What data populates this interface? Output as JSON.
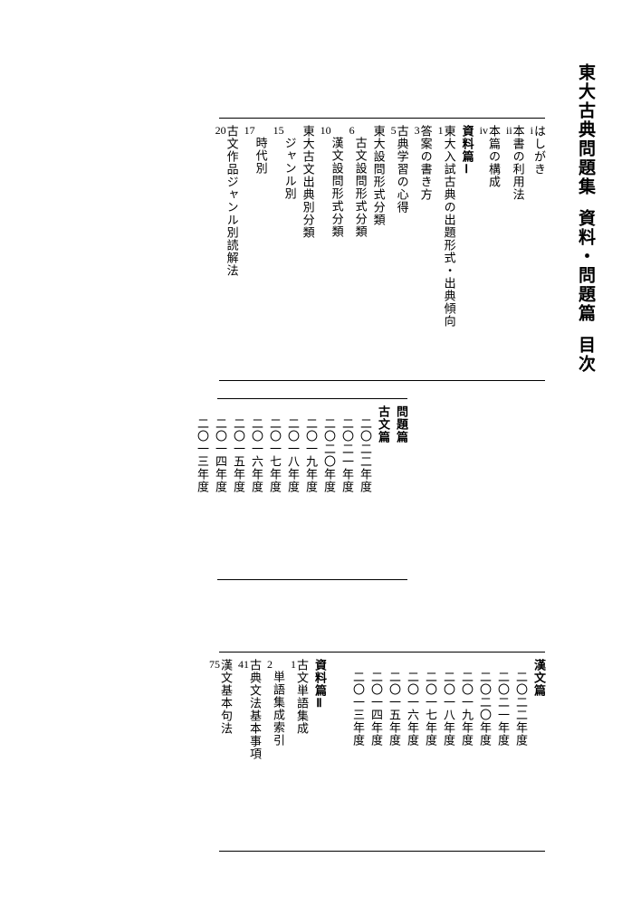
{
  "title_parts": [
    "東大古典問題集",
    "資料・問題篇",
    "目次"
  ],
  "block1": {
    "entries": [
      {
        "label": "はしがき",
        "page": "i",
        "indent": 0,
        "heading": false
      },
      {
        "label": "本書の利用法",
        "page": "ii",
        "indent": 0,
        "heading": false
      },
      {
        "label": "本篇の構成",
        "page": "iv",
        "indent": 0,
        "heading": false
      },
      {
        "label": "資料篇Ⅰ",
        "page": "",
        "indent": 0,
        "heading": true
      },
      {
        "label": "東大入試古典の出題形式・出典傾向",
        "page": "1",
        "indent": 0,
        "heading": false
      },
      {
        "label": "答案の書き方",
        "page": "3",
        "indent": 0,
        "heading": false
      },
      {
        "label": "古典学習の心得",
        "page": "5",
        "indent": 0,
        "heading": false
      },
      {
        "label": "東大設問形式分類",
        "page": "",
        "indent": 0,
        "heading": false
      },
      {
        "label": "古文設問形式分類",
        "page": "6",
        "indent": 1,
        "heading": false
      },
      {
        "label": "漢文設問形式分類",
        "page": "10",
        "indent": 1,
        "heading": false
      },
      {
        "label": "東大古文出典別分類",
        "page": "",
        "indent": 0,
        "heading": false
      },
      {
        "label": "ジャンル別",
        "page": "15",
        "indent": 1,
        "heading": false
      },
      {
        "label": "時代別",
        "page": "17",
        "indent": 1,
        "heading": false
      },
      {
        "label": "古文作品ジャンル別読解法",
        "page": "20",
        "indent": 0,
        "heading": false
      }
    ]
  },
  "block2": {
    "entries": [
      {
        "label": "問題篇",
        "page": "",
        "indent": 0,
        "heading": true
      },
      {
        "label": "古文篇",
        "page": "",
        "indent": 0,
        "heading": true
      },
      {
        "label": "二〇二二年度",
        "page": "",
        "indent": 1,
        "heading": false
      },
      {
        "label": "二〇二一年度",
        "page": "",
        "indent": 1,
        "heading": false
      },
      {
        "label": "二〇二〇年度",
        "page": "",
        "indent": 1,
        "heading": false
      },
      {
        "label": "二〇一九年度",
        "page": "",
        "indent": 1,
        "heading": false
      },
      {
        "label": "二〇一八年度",
        "page": "",
        "indent": 1,
        "heading": false
      },
      {
        "label": "二〇一七年度",
        "page": "",
        "indent": 1,
        "heading": false
      },
      {
        "label": "二〇一六年度",
        "page": "",
        "indent": 1,
        "heading": false
      },
      {
        "label": "二〇一五年度",
        "page": "",
        "indent": 1,
        "heading": false
      },
      {
        "label": "二〇一四年度",
        "page": "",
        "indent": 1,
        "heading": false
      },
      {
        "label": "二〇一三年度",
        "page": "",
        "indent": 1,
        "heading": false
      }
    ]
  },
  "block3": {
    "entries": [
      {
        "label": "漢文篇",
        "page": "",
        "indent": 0,
        "heading": true
      },
      {
        "label": "二〇二二年度",
        "page": "",
        "indent": 1,
        "heading": false
      },
      {
        "label": "二〇二一年度",
        "page": "",
        "indent": 1,
        "heading": false
      },
      {
        "label": "二〇二〇年度",
        "page": "",
        "indent": 1,
        "heading": false
      },
      {
        "label": "二〇一九年度",
        "page": "",
        "indent": 1,
        "heading": false
      },
      {
        "label": "二〇一八年度",
        "page": "",
        "indent": 1,
        "heading": false
      },
      {
        "label": "二〇一七年度",
        "page": "",
        "indent": 1,
        "heading": false
      },
      {
        "label": "二〇一六年度",
        "page": "",
        "indent": 1,
        "heading": false
      },
      {
        "label": "二〇一五年度",
        "page": "",
        "indent": 1,
        "heading": false
      },
      {
        "label": "二〇一四年度",
        "page": "",
        "indent": 1,
        "heading": false
      },
      {
        "label": "二〇一三年度",
        "page": "",
        "indent": 1,
        "heading": false
      }
    ]
  },
  "block3b": {
    "entries": [
      {
        "label": "資料篇Ⅱ",
        "page": "",
        "indent": 0,
        "heading": true
      },
      {
        "label": "古文単語集成",
        "page": "1",
        "indent": 0,
        "heading": false
      },
      {
        "label": "単語集成索引",
        "page": "2",
        "indent": 1,
        "heading": false
      },
      {
        "label": "古典文法基本事項",
        "page": "41",
        "indent": 0,
        "heading": false
      },
      {
        "label": "漢文基本句法",
        "page": "75",
        "indent": 0,
        "heading": false
      }
    ]
  }
}
